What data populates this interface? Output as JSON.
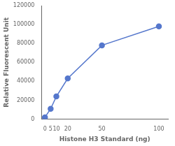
{
  "chart_data": {
    "type": "line",
    "x": [
      0,
      5,
      10,
      20,
      50,
      100
    ],
    "values": [
      2000,
      11000,
      24000,
      43000,
      78000,
      98000
    ],
    "color": "#5577cc",
    "marker": "circle",
    "xlabel": "Histone H3 Standard (ng)",
    "ylabel": "Relative Fluorescent Unit",
    "xlim": [
      -3,
      108
    ],
    "ylim": [
      0,
      120000
    ],
    "xticks": [
      0,
      5,
      10,
      20,
      50,
      100
    ],
    "yticks": [
      0,
      20000,
      40000,
      60000,
      80000,
      100000,
      120000
    ],
    "grid": false
  }
}
